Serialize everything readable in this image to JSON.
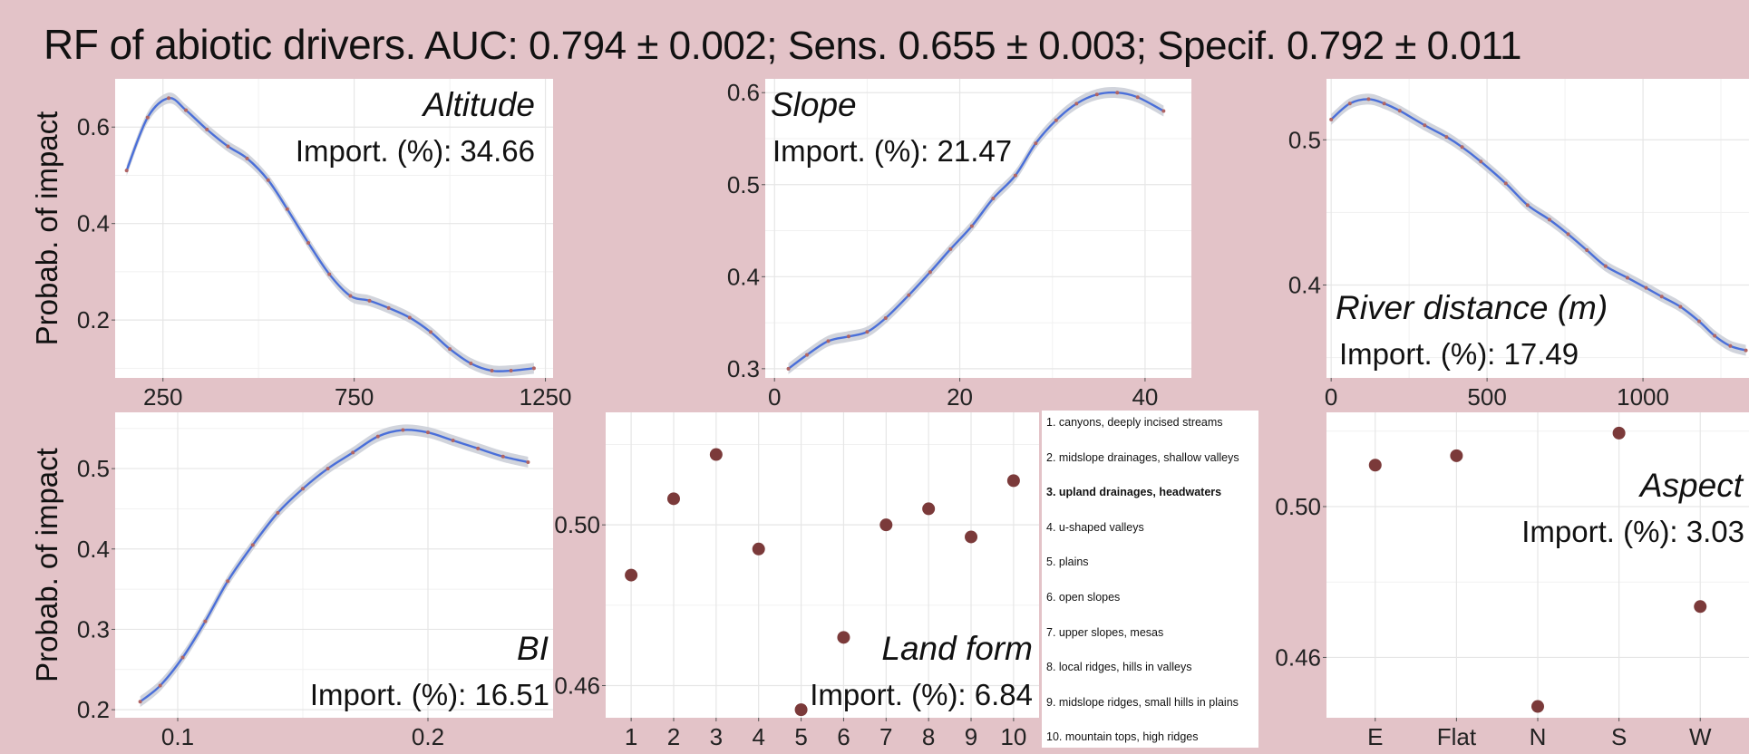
{
  "title": {
    "lead": "RF of abiotic drivers.",
    "metrics": "AUC: 0.794 ± 0.002; Sens. 0.655 ± 0.003; Specif. 0.792 ± 0.011"
  },
  "colors": {
    "background": "#e3c3c8",
    "plot_background": "#ffffff",
    "line": "#4a6fd9",
    "ribbon": "#c9ccd6",
    "points": "#7b3a3a"
  },
  "chart_data": [
    {
      "id": "altitude",
      "type": "line",
      "title": "Altitude",
      "importance": "Import. (%): 34.66",
      "ylabel": "Probab. of impact",
      "xlim": [
        125,
        1270
      ],
      "ylim": [
        0.08,
        0.7
      ],
      "xticks": [
        250,
        750,
        1250
      ],
      "yticks": [
        0.2,
        0.4,
        0.6
      ],
      "ytick_labels": [
        "0.2",
        "0.4",
        "0.6"
      ],
      "x": [
        155,
        210,
        265,
        310,
        365,
        420,
        470,
        525,
        575,
        630,
        685,
        740,
        790,
        840,
        895,
        950,
        1000,
        1055,
        1110,
        1160,
        1220
      ],
      "y": [
        0.51,
        0.62,
        0.66,
        0.635,
        0.595,
        0.56,
        0.535,
        0.49,
        0.43,
        0.36,
        0.295,
        0.25,
        0.24,
        0.225,
        0.205,
        0.175,
        0.14,
        0.11,
        0.095,
        0.095,
        0.1
      ]
    },
    {
      "id": "slope",
      "type": "line",
      "title": "Slope",
      "importance": "Import. (%): 21.47",
      "ylabel": "",
      "xlim": [
        -1,
        45
      ],
      "ylim": [
        0.29,
        0.615
      ],
      "xticks": [
        0,
        20,
        40
      ],
      "yticks": [
        0.3,
        0.4,
        0.5,
        0.6
      ],
      "ytick_labels": [
        "0.3",
        "0.4",
        "0.5",
        "0.6"
      ],
      "x": [
        1.5,
        3.5,
        5.8,
        8,
        10,
        12,
        14.5,
        16.8,
        19,
        21.3,
        23.6,
        26,
        28.2,
        30.4,
        32.6,
        34.8,
        37,
        39.2,
        42
      ],
      "y": [
        0.3,
        0.315,
        0.33,
        0.335,
        0.34,
        0.355,
        0.38,
        0.405,
        0.43,
        0.455,
        0.485,
        0.51,
        0.545,
        0.57,
        0.588,
        0.598,
        0.6,
        0.595,
        0.58
      ]
    },
    {
      "id": "river",
      "type": "line",
      "title": "River distance (m)",
      "importance": "Import. (%): 17.49",
      "ylabel": "",
      "xlim": [
        -15,
        1340
      ],
      "ylim": [
        0.336,
        0.542
      ],
      "xticks": [
        0,
        500,
        1000
      ],
      "yticks": [
        0.4,
        0.5
      ],
      "ytick_labels": [
        "0.4",
        "0.5"
      ],
      "x": [
        0,
        60,
        120,
        170,
        220,
        300,
        370,
        420,
        480,
        560,
        630,
        700,
        760,
        820,
        880,
        950,
        1010,
        1060,
        1120,
        1180,
        1230,
        1280,
        1330
      ],
      "y": [
        0.514,
        0.525,
        0.528,
        0.525,
        0.52,
        0.51,
        0.502,
        0.495,
        0.485,
        0.47,
        0.455,
        0.445,
        0.435,
        0.424,
        0.413,
        0.405,
        0.398,
        0.392,
        0.385,
        0.375,
        0.365,
        0.358,
        0.355
      ]
    },
    {
      "id": "bi",
      "type": "line",
      "title": "BI",
      "importance": "Import. (%): 16.51",
      "ylabel": "Probab. of impact",
      "xlim": [
        0.075,
        0.25
      ],
      "ylim": [
        0.19,
        0.57
      ],
      "xticks": [
        0.1,
        0.2
      ],
      "xtick_labels": [
        "0.1",
        "0.2"
      ],
      "yticks": [
        0.2,
        0.3,
        0.4,
        0.5
      ],
      "ytick_labels": [
        "0.2",
        "0.3",
        "0.4",
        "0.5"
      ],
      "x": [
        0.085,
        0.093,
        0.102,
        0.111,
        0.12,
        0.13,
        0.14,
        0.15,
        0.16,
        0.17,
        0.18,
        0.19,
        0.2,
        0.21,
        0.22,
        0.23,
        0.24
      ],
      "y": [
        0.21,
        0.23,
        0.265,
        0.31,
        0.36,
        0.405,
        0.445,
        0.475,
        0.5,
        0.52,
        0.54,
        0.548,
        0.545,
        0.535,
        0.525,
        0.515,
        0.508
      ]
    },
    {
      "id": "landform",
      "type": "scatter",
      "title": "Land form",
      "importance": "Import. (%): 6.84",
      "ylabel": "",
      "xlim": [
        0.4,
        10.6
      ],
      "ylim": [
        0.452,
        0.528
      ],
      "categories": [
        "1",
        "2",
        "3",
        "4",
        "5",
        "6",
        "7",
        "8",
        "9",
        "10"
      ],
      "yticks": [
        0.46,
        0.5
      ],
      "ytick_labels": [
        "0.46",
        "0.50"
      ],
      "values": [
        0.4875,
        0.5065,
        0.5175,
        0.494,
        0.454,
        0.472,
        0.5,
        0.504,
        0.497,
        0.511
      ]
    },
    {
      "id": "aspect",
      "type": "scatter",
      "title": "Aspect",
      "importance": "Import. (%): 3.03",
      "ylabel": "",
      "xlim": [
        0.4,
        5.6
      ],
      "ylim": [
        0.444,
        0.525
      ],
      "categories": [
        "E",
        "Flat",
        "N",
        "S",
        "W"
      ],
      "yticks": [
        0.46,
        0.5
      ],
      "ytick_labels": [
        "0.46",
        "0.50"
      ],
      "values": [
        0.511,
        0.5135,
        0.447,
        0.5195,
        0.4735
      ]
    }
  ],
  "legend": {
    "items": [
      {
        "label": "1. canyons, deeply incised streams",
        "bold": false
      },
      {
        "label": "2. midslope drainages, shallow valleys",
        "bold": false
      },
      {
        "label": "3. upland drainages, headwaters",
        "bold": true
      },
      {
        "label": "4. u-shaped valleys",
        "bold": false
      },
      {
        "label": "5. plains",
        "bold": false
      },
      {
        "label": "6. open slopes",
        "bold": false
      },
      {
        "label": "7. upper slopes, mesas",
        "bold": false
      },
      {
        "label": "8. local ridges, hills in valleys",
        "bold": false
      },
      {
        "label": "9. midslope ridges, small hills in plains",
        "bold": false
      },
      {
        "label": "10. mountain tops, high ridges",
        "bold": false
      }
    ]
  }
}
